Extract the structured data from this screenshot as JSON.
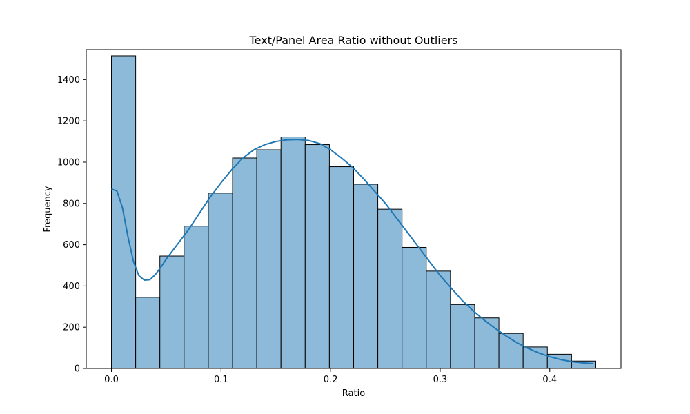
{
  "chart_data": {
    "type": "bar",
    "subtype": "histogram",
    "title": "Text/Panel Area Ratio without Outliers",
    "xlabel": "Ratio",
    "ylabel": "Frequency",
    "xlim": [
      -0.023,
      0.465
    ],
    "ylim": [
      0,
      1545
    ],
    "xticks": [
      0.0,
      0.1,
      0.2,
      0.3,
      0.4
    ],
    "xtick_labels": [
      "0.0",
      "0.1",
      "0.2",
      "0.3",
      "0.4"
    ],
    "yticks": [
      0,
      200,
      400,
      600,
      800,
      1000,
      1200,
      1400
    ],
    "ytick_labels": [
      "0",
      "200",
      "400",
      "600",
      "800",
      "1000",
      "1200",
      "1400"
    ],
    "bin_edges": [
      0.0,
      0.0221,
      0.0442,
      0.0663,
      0.0884,
      0.1105,
      0.1326,
      0.1547,
      0.1768,
      0.1989,
      0.221,
      0.2431,
      0.2652,
      0.2873,
      0.3094,
      0.3315,
      0.3536,
      0.3757,
      0.3978,
      0.4199,
      0.442
    ],
    "values": [
      1515,
      345,
      545,
      690,
      850,
      1020,
      1060,
      1122,
      1085,
      978,
      893,
      772,
      587,
      472,
      310,
      245,
      170,
      104,
      69,
      36
    ],
    "bar_color": "#8dbad9",
    "bar_edge_color": "#000000",
    "kde": {
      "color": "#1f77b4",
      "x": [
        0.0,
        0.005,
        0.01,
        0.015,
        0.02,
        0.025,
        0.03,
        0.035,
        0.04,
        0.045,
        0.05,
        0.06,
        0.07,
        0.08,
        0.09,
        0.1,
        0.11,
        0.12,
        0.13,
        0.14,
        0.15,
        0.16,
        0.17,
        0.18,
        0.19,
        0.2,
        0.21,
        0.22,
        0.23,
        0.24,
        0.25,
        0.26,
        0.27,
        0.28,
        0.29,
        0.3,
        0.31,
        0.32,
        0.33,
        0.34,
        0.35,
        0.36,
        0.37,
        0.38,
        0.39,
        0.4,
        0.41,
        0.42,
        0.43,
        0.44
      ],
      "y": [
        870,
        860,
        780,
        640,
        520,
        450,
        428,
        430,
        455,
        490,
        530,
        600,
        670,
        750,
        830,
        900,
        965,
        1020,
        1060,
        1085,
        1100,
        1108,
        1110,
        1105,
        1090,
        1060,
        1020,
        975,
        920,
        860,
        800,
        730,
        660,
        590,
        520,
        450,
        390,
        330,
        280,
        235,
        195,
        158,
        125,
        98,
        75,
        57,
        43,
        33,
        27,
        24
      ]
    },
    "grid": false,
    "legend": "none"
  }
}
